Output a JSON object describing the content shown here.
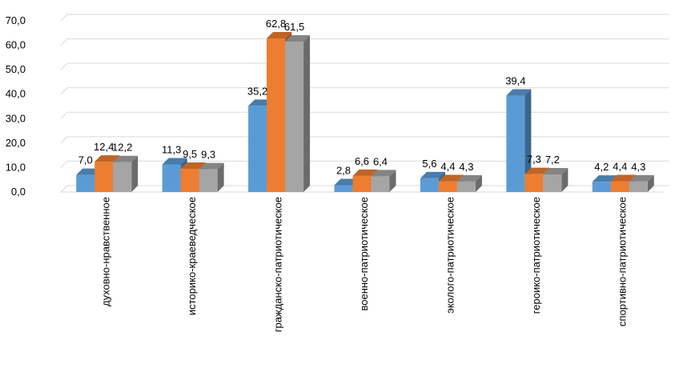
{
  "chart_data": {
    "type": "bar",
    "title": "",
    "xlabel": "",
    "ylabel": "",
    "ylim": [
      0,
      70
    ],
    "yticks": [
      0,
      10,
      20,
      30,
      40,
      50,
      60,
      70
    ],
    "ytick_labels": [
      "0,0",
      "10,0",
      "20,0",
      "30,0",
      "40,0",
      "50,0",
      "60,0",
      "70,0"
    ],
    "grid": true,
    "legend": "none",
    "categories": [
      "духовно-нравственное",
      "историко-краеведческое",
      "гражданско-патриотическое",
      "военно-патриотическое",
      "эколого-патриотическое",
      "героико-патриотическое",
      "спортивно-патриотическое"
    ],
    "series": [
      {
        "name": "series-1",
        "color": "#5B9BD5",
        "values": [
          7.0,
          11.3,
          35.2,
          2.8,
          5.6,
          39.4,
          4.2
        ],
        "labels": [
          "7,0",
          "11,3",
          "35,2",
          "2,8",
          "5,6",
          "39,4",
          "4,2"
        ]
      },
      {
        "name": "series-2",
        "color": "#ED7D31",
        "values": [
          12.4,
          9.5,
          62.8,
          6.6,
          4.4,
          7.3,
          4.4
        ],
        "labels": [
          "12,4",
          "9,5",
          "62,8",
          "6,6",
          "4,4",
          "7,3",
          "4,4"
        ]
      },
      {
        "name": "series-3",
        "color": "#A5A5A5",
        "values": [
          12.2,
          9.3,
          61.5,
          6.4,
          4.3,
          7.2,
          4.3
        ],
        "labels": [
          "12,2",
          "9,3",
          "61,5",
          "6,4",
          "4,3",
          "7,2",
          "4,3"
        ]
      }
    ]
  }
}
